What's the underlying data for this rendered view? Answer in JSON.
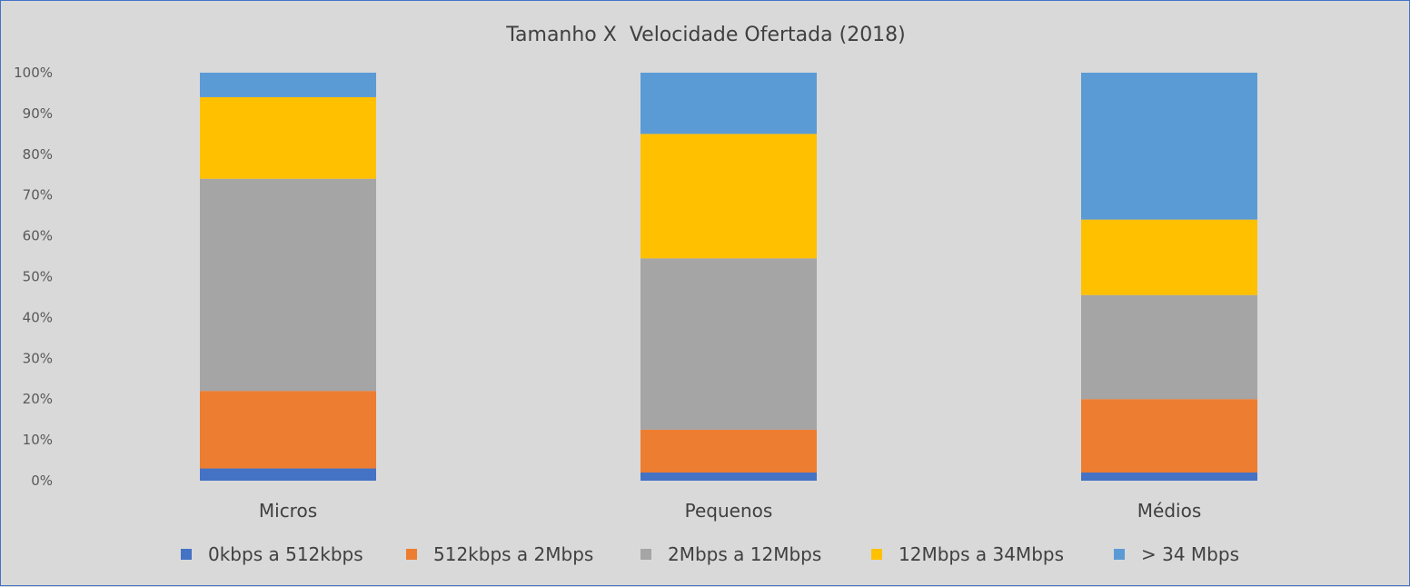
{
  "chart_data": {
    "type": "bar",
    "stacked": true,
    "percent_stacked": true,
    "title": "Tamanho X  Velocidade Ofertada (2018)",
    "categories": [
      "Micros",
      "Pequenos",
      "Médios"
    ],
    "y_ticks": [
      "0%",
      "10%",
      "20%",
      "30%",
      "40%",
      "50%",
      "60%",
      "70%",
      "80%",
      "90%",
      "100%"
    ],
    "ylim": [
      0,
      100
    ],
    "grid": false,
    "legend_position": "bottom",
    "series": [
      {
        "name": "0kbps a 512kbps",
        "color": "#4472c4",
        "values": [
          3,
          2,
          2
        ]
      },
      {
        "name": "512kbps a 2Mbps",
        "color": "#ed7d31",
        "values": [
          19,
          10.5,
          18
        ]
      },
      {
        "name": "2Mbps a 12Mbps",
        "color": "#a5a5a5",
        "values": [
          52,
          42,
          25.5
        ]
      },
      {
        "name": "12Mbps a 34Mbps",
        "color": "#ffc000",
        "values": [
          20,
          30.5,
          18.5
        ]
      },
      {
        "name": "> 34 Mbps",
        "color": "#5b9bd5",
        "values": [
          6,
          15,
          36
        ]
      }
    ]
  }
}
